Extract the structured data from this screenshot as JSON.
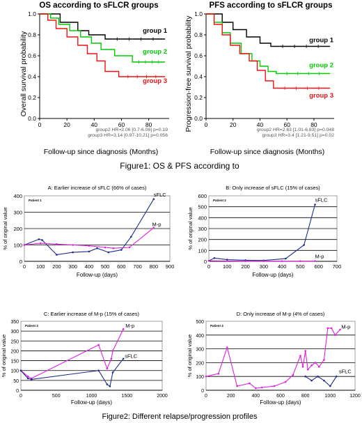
{
  "figure1": {
    "caption": "Figure1: OS & PFS according to",
    "left": {
      "title": "OS according to sFLCR groups",
      "ylabel": "Overall survival probability",
      "xlabel": "Follow-up since diagnosis (Months)",
      "stats": [
        "group2 HR=2.06 [0.7-6.06] p=0.19",
        "group3 HR=3.14 [0.97-10.21] p=0.056"
      ]
    },
    "right": {
      "title": "PFS according to sFLCR groups",
      "ylabel": "Progression-free survival probability",
      "xlabel": "Follow-up since diagnosis (Months)",
      "stats": [
        "group2 HR=2.63 [1.01-6.83] p=0.048",
        "group3 HR=3.4 [1.21-9.51] p=0.02"
      ]
    }
  },
  "figure2": {
    "caption": "Figure2: Different relapse/progression profiles"
  },
  "colors": {
    "group1": "#000000",
    "group2": "#00cc00",
    "group3": "#ee1111",
    "sflc": "#1f2d8a",
    "mp": "#e020e0"
  },
  "chart_data": [
    {
      "type": "line",
      "title": "OS according to sFLCR groups",
      "xlabel": "Follow-up since diagnosis (Months)",
      "ylabel": "Overall survival probability",
      "xlim": [
        0,
        95
      ],
      "ylim": [
        0,
        1
      ],
      "xticks": [
        0,
        20,
        40,
        60,
        80
      ],
      "yticks": [
        0,
        0.2,
        0.4,
        0.6,
        0.8,
        1.0
      ],
      "series": [
        {
          "name": "group 1",
          "color": "#000000",
          "x": [
            0,
            15,
            15,
            28,
            28,
            36,
            36,
            48,
            48,
            92
          ],
          "y": [
            1.0,
            1.0,
            0.92,
            0.92,
            0.84,
            0.84,
            0.8,
            0.8,
            0.76,
            0.76
          ]
        },
        {
          "name": "group 2",
          "color": "#00cc00",
          "x": [
            0,
            8,
            8,
            14,
            14,
            22,
            22,
            30,
            30,
            38,
            38,
            45,
            45,
            55,
            55,
            68,
            68,
            92
          ],
          "y": [
            1.0,
            1.0,
            0.96,
            0.96,
            0.9,
            0.9,
            0.84,
            0.84,
            0.78,
            0.78,
            0.72,
            0.72,
            0.66,
            0.66,
            0.6,
            0.6,
            0.54,
            0.54
          ]
        },
        {
          "name": "group 3",
          "color": "#ee1111",
          "x": [
            0,
            6,
            6,
            12,
            12,
            20,
            20,
            28,
            28,
            35,
            35,
            42,
            42,
            48,
            48,
            58,
            58,
            92
          ],
          "y": [
            1.0,
            1.0,
            0.94,
            0.94,
            0.86,
            0.86,
            0.78,
            0.78,
            0.7,
            0.7,
            0.62,
            0.62,
            0.55,
            0.55,
            0.45,
            0.45,
            0.4,
            0.4
          ]
        }
      ]
    },
    {
      "type": "line",
      "title": "PFS according to sFLCR groups",
      "xlabel": "Follow-up since diagnosis (Months)",
      "ylabel": "Progression-free survival probability",
      "xlim": [
        0,
        95
      ],
      "ylim": [
        0,
        1
      ],
      "xticks": [
        0,
        20,
        40,
        60,
        80
      ],
      "yticks": [
        0,
        0.2,
        0.4,
        0.6,
        0.8,
        1.0
      ],
      "series": [
        {
          "name": "group 1",
          "color": "#000000",
          "x": [
            0,
            12,
            12,
            20,
            20,
            30,
            30,
            40,
            40,
            48,
            48,
            92
          ],
          "y": [
            1.0,
            1.0,
            0.92,
            0.92,
            0.85,
            0.85,
            0.78,
            0.78,
            0.72,
            0.72,
            0.69,
            0.69
          ]
        },
        {
          "name": "group 2",
          "color": "#00cc00",
          "x": [
            0,
            6,
            6,
            12,
            12,
            18,
            18,
            26,
            26,
            34,
            34,
            40,
            40,
            46,
            46,
            52,
            52,
            92
          ],
          "y": [
            1.0,
            1.0,
            0.92,
            0.92,
            0.82,
            0.82,
            0.72,
            0.72,
            0.62,
            0.62,
            0.55,
            0.55,
            0.5,
            0.5,
            0.45,
            0.45,
            0.43,
            0.43
          ]
        },
        {
          "name": "group 3",
          "color": "#ee1111",
          "x": [
            0,
            6,
            6,
            12,
            12,
            18,
            18,
            25,
            25,
            32,
            32,
            38,
            38,
            44,
            44,
            50,
            50,
            92
          ],
          "y": [
            1.0,
            1.0,
            0.9,
            0.9,
            0.8,
            0.8,
            0.7,
            0.7,
            0.62,
            0.62,
            0.55,
            0.55,
            0.46,
            0.46,
            0.36,
            0.36,
            0.29,
            0.29
          ]
        }
      ]
    },
    {
      "type": "line",
      "title": "A: Earlier increase of sFLC (66% of cases)",
      "xlabel": "Follow-up (days)",
      "ylabel": "% of original value",
      "patient": "Patient 1",
      "xlim": [
        0,
        900
      ],
      "ylim": [
        0,
        400
      ],
      "xticks": [
        0,
        100,
        200,
        300,
        400,
        500,
        600,
        700,
        800,
        900
      ],
      "yticks": [
        0,
        100,
        200,
        300,
        400
      ],
      "series": [
        {
          "name": "sFLC",
          "color": "#1f2d8a",
          "x": [
            0,
            90,
            110,
            200,
            300,
            400,
            450,
            520,
            600,
            660,
            800
          ],
          "y": [
            100,
            135,
            130,
            40,
            55,
            60,
            80,
            55,
            70,
            150,
            380
          ]
        },
        {
          "name": "M-p",
          "color": "#e020e0",
          "x": [
            0,
            100,
            200,
            300,
            400,
            500,
            550,
            650,
            800
          ],
          "y": [
            100,
            110,
            105,
            100,
            95,
            85,
            80,
            85,
            205
          ]
        }
      ]
    },
    {
      "type": "line",
      "title": "B: Only increase of sFLC (15% of cases)",
      "xlabel": "Follow-up (days)",
      "ylabel": "% of original value",
      "patient": "Patient 2",
      "xlim": [
        0,
        700
      ],
      "ylim": [
        0,
        600
      ],
      "xticks": [
        0,
        100,
        200,
        300,
        400,
        500,
        600,
        700
      ],
      "yticks": [
        0,
        100,
        200,
        300,
        400,
        500,
        600
      ],
      "series": [
        {
          "name": "sFLC",
          "color": "#1f2d8a",
          "x": [
            0,
            30,
            100,
            200,
            300,
            420,
            520,
            580
          ],
          "y": [
            5,
            30,
            15,
            10,
            8,
            25,
            150,
            520
          ]
        },
        {
          "name": "M-p",
          "color": "#e020e0",
          "x": [
            0,
            100,
            200,
            300,
            400,
            500,
            580
          ],
          "y": [
            5,
            3,
            2,
            2,
            2,
            2,
            2
          ]
        }
      ]
    },
    {
      "type": "line",
      "title": "C: Earlier increase of M-p (15% of cases)",
      "xlabel": "Follow-up (days)",
      "ylabel": "% of original value",
      "patient": "Patient 3",
      "xlim": [
        0,
        2000
      ],
      "ylim": [
        0,
        350
      ],
      "xticks": [
        0,
        500,
        1000,
        1500,
        2000
      ],
      "yticks": [
        0,
        50,
        100,
        150,
        200,
        250,
        300,
        350
      ],
      "series": [
        {
          "name": "M-p",
          "color": "#e020e0",
          "x": [
            0,
            100,
            150,
            1100,
            1220,
            1280,
            1300,
            1450
          ],
          "y": [
            100,
            70,
            60,
            230,
            110,
            160,
            200,
            310
          ]
        },
        {
          "name": "sFLC",
          "color": "#1f2d8a",
          "x": [
            0,
            100,
            150,
            1100,
            1220,
            1260,
            1300,
            1450
          ],
          "y": [
            100,
            60,
            55,
            100,
            30,
            20,
            90,
            160
          ]
        }
      ]
    },
    {
      "type": "line",
      "title": "D: Only increase of M-p (4% of cases)",
      "xlabel": "Follow-up (days)",
      "ylabel": "% of original value",
      "patient": "Patient 4",
      "xlim": [
        0,
        1200
      ],
      "ylim": [
        0,
        500
      ],
      "xticks": [
        0,
        200,
        400,
        600,
        800,
        1000,
        1200
      ],
      "yticks": [
        0,
        100,
        200,
        300,
        400,
        500
      ],
      "series": [
        {
          "name": "M-p",
          "color": "#e020e0",
          "x": [
            0,
            100,
            170,
            250,
            350,
            400,
            450,
            550,
            640,
            700,
            760,
            780,
            800,
            820,
            850,
            880,
            910,
            950,
            980,
            1010,
            1040,
            1080
          ],
          "y": [
            100,
            120,
            310,
            30,
            50,
            15,
            20,
            30,
            60,
            110,
            250,
            170,
            285,
            150,
            180,
            200,
            170,
            220,
            450,
            450,
            400,
            440
          ]
        },
        {
          "name": "sFLC",
          "color": "#1f2d8a",
          "x": [
            800,
            850,
            900,
            950,
            1000,
            1050
          ],
          "y": [
            100,
            70,
            100,
            70,
            30,
            100
          ]
        }
      ]
    }
  ]
}
